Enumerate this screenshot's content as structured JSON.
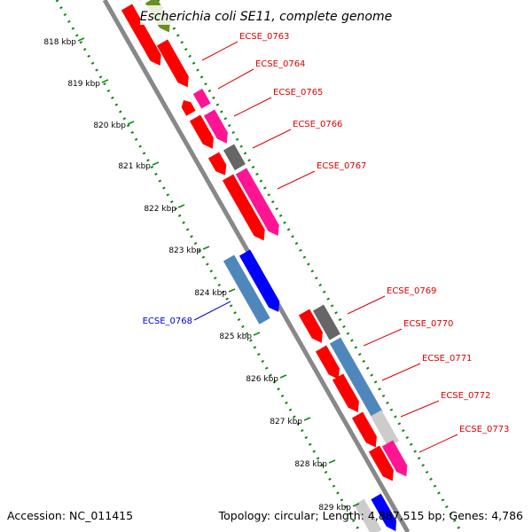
{
  "title": "Escherichia coli SE11, complete genome",
  "footer": {
    "accession": "Accession: NC_011415",
    "stats": "Topology: circular; Length: 4,887,515 bp; Genes: 4,786"
  },
  "colors": {
    "backbone": "#888888",
    "tick_dots": "#118811",
    "label_forward": "#dd0000",
    "label_reverse": "#0000cc",
    "gene_red": "#ff0000",
    "gene_magenta": "#ff1493",
    "gene_steelblue": "#4f87bd",
    "gene_blue": "#0000ff",
    "gene_darkgray": "#666666",
    "gene_lightgray": "#cccccc",
    "gene_olive": "#6b8e23"
  },
  "scale": {
    "ticks": [
      "818 kbp",
      "819 kbp",
      "820 kbp",
      "821 kbp",
      "822 kbp",
      "823 kbp",
      "824 kbp",
      "825 kbp",
      "826 kbp",
      "827 kbp",
      "828 kbp",
      "829 kbp"
    ]
  },
  "gene_labels": [
    {
      "name": "ECSE_0763",
      "strand": "forward"
    },
    {
      "name": "ECSE_0764",
      "strand": "forward"
    },
    {
      "name": "ECSE_0765",
      "strand": "forward"
    },
    {
      "name": "ECSE_0766",
      "strand": "forward"
    },
    {
      "name": "ECSE_0767",
      "strand": "forward"
    },
    {
      "name": "ECSE_0768",
      "strand": "reverse"
    },
    {
      "name": "ECSE_0769",
      "strand": "forward"
    },
    {
      "name": "ECSE_0770",
      "strand": "forward"
    },
    {
      "name": "ECSE_0771",
      "strand": "forward"
    },
    {
      "name": "ECSE_0772",
      "strand": "forward"
    },
    {
      "name": "ECSE_0773",
      "strand": "forward"
    }
  ],
  "features": [
    {
      "color": "gene_olive",
      "arrow": "end"
    },
    {
      "color": "gene_red",
      "arrow": "end"
    },
    {
      "color": "gene_red",
      "arrow": "end"
    },
    {
      "color": "gene_magenta",
      "arrow": "none"
    },
    {
      "color": "gene_red",
      "arrow": "start"
    },
    {
      "color": "gene_red",
      "arrow": "end"
    },
    {
      "color": "gene_magenta",
      "arrow": "end"
    },
    {
      "color": "gene_darkgray",
      "arrow": "none"
    },
    {
      "color": "gene_red",
      "arrow": "end"
    },
    {
      "color": "gene_red",
      "arrow": "end"
    },
    {
      "color": "gene_magenta",
      "arrow": "end"
    },
    {
      "color": "gene_steelblue",
      "arrow": "none"
    },
    {
      "color": "gene_blue",
      "arrow": "end"
    },
    {
      "color": "gene_darkgray",
      "arrow": "none"
    },
    {
      "color": "gene_red",
      "arrow": "end"
    },
    {
      "color": "gene_red",
      "arrow": "end"
    },
    {
      "color": "gene_steelblue",
      "arrow": "none"
    },
    {
      "color": "gene_red",
      "arrow": "end"
    },
    {
      "color": "gene_red",
      "arrow": "end"
    },
    {
      "color": "gene_lightgray",
      "arrow": "none"
    },
    {
      "color": "gene_red",
      "arrow": "end"
    },
    {
      "color": "gene_magenta",
      "arrow": "end"
    },
    {
      "color": "gene_blue",
      "arrow": "end"
    },
    {
      "color": "gene_lightgray",
      "arrow": "none"
    }
  ]
}
